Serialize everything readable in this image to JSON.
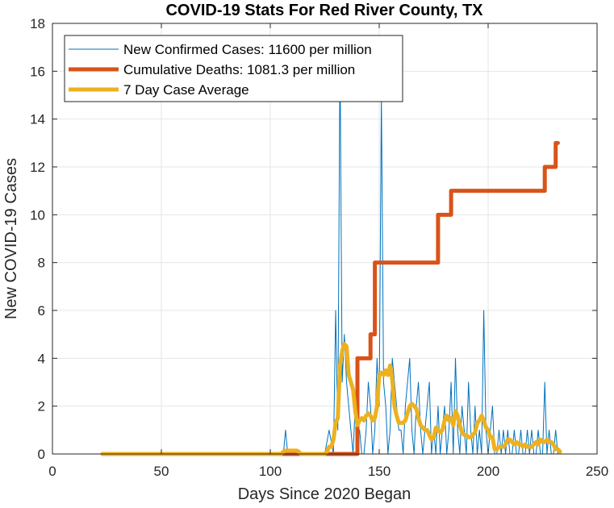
{
  "chart_data": {
    "type": "line",
    "title": "COVID-19 Stats For Red River County, TX",
    "xlabel": "Days Since 2020 Began",
    "ylabel": "New COVID-19 Cases",
    "xlim": [
      0,
      250
    ],
    "ylim": [
      0,
      18
    ],
    "xticks": [
      0,
      50,
      100,
      150,
      200,
      250
    ],
    "yticks": [
      0,
      2,
      4,
      6,
      8,
      10,
      12,
      14,
      16,
      18
    ],
    "grid": true,
    "legend_position": "top-left",
    "colors": {
      "cases": "#0072BD",
      "deaths": "#D95319",
      "avg": "#EDB120",
      "grid": "#e6e6e6",
      "axis": "#262626"
    },
    "series": [
      {
        "name": "New Confirmed Cases: 11600 per million",
        "key": "cases",
        "x": [
          23,
          106,
          107,
          108,
          109,
          110,
          125,
          127,
          129,
          130,
          131,
          132,
          133,
          134,
          135,
          136,
          137,
          138,
          139,
          140,
          141,
          142,
          143,
          144,
          145,
          146,
          147,
          148,
          149,
          150,
          151,
          152,
          153,
          154,
          155,
          156,
          157,
          158,
          159,
          160,
          161,
          162,
          163,
          164,
          165,
          166,
          167,
          168,
          169,
          170,
          171,
          172,
          173,
          174,
          175,
          176,
          177,
          178,
          179,
          180,
          181,
          182,
          183,
          184,
          185,
          186,
          187,
          188,
          189,
          190,
          191,
          192,
          193,
          194,
          195,
          196,
          197,
          198,
          199,
          200,
          201,
          202,
          203,
          204,
          205,
          206,
          207,
          208,
          209,
          210,
          211,
          212,
          213,
          214,
          215,
          216,
          217,
          218,
          219,
          220,
          221,
          222,
          223,
          224,
          225,
          226,
          227,
          228,
          229,
          230,
          231,
          232
        ],
        "y": [
          0,
          0,
          1,
          0,
          0,
          0,
          0,
          1,
          0,
          6,
          1,
          17,
          3,
          5,
          3,
          2,
          1,
          0,
          2,
          1,
          1,
          0,
          0,
          1,
          3,
          2,
          0,
          1,
          4,
          2,
          15,
          3,
          2,
          0,
          1,
          4,
          3,
          2,
          1,
          1,
          0,
          2,
          3,
          4,
          1,
          0,
          2,
          3,
          1,
          0,
          1,
          2,
          3,
          0,
          1,
          0,
          2,
          0,
          1,
          2,
          0,
          1,
          3,
          0,
          4,
          1,
          0,
          2,
          1,
          0,
          3,
          1,
          0,
          2,
          0,
          1,
          0,
          6,
          1,
          0,
          1,
          2,
          0,
          0,
          1,
          0,
          1,
          0,
          1,
          0,
          0,
          1,
          0,
          0,
          1,
          0,
          0,
          1,
          0,
          1,
          0,
          0,
          1,
          0,
          0,
          3,
          0,
          1,
          0,
          0,
          1,
          0
        ]
      },
      {
        "name": "Cumulative Deaths: 1081.3 per million",
        "key": "deaths",
        "x": [
          23,
          140,
          140.01,
          141,
          146,
          146.01,
          147,
          147.01,
          148,
          148.01,
          177,
          177.01,
          180,
          180.01,
          183,
          183.01,
          226,
          226.01,
          229,
          229.01,
          231,
          231.01,
          232
        ],
        "y": [
          0,
          0,
          4,
          4,
          4,
          5,
          5,
          5,
          5,
          8,
          8,
          10,
          10,
          10,
          10,
          11,
          11,
          12,
          12,
          12,
          12,
          13,
          13
        ]
      },
      {
        "name": "7 Day Case Average",
        "key": "avg",
        "x": [
          23,
          105,
          106,
          107,
          108,
          110,
          112,
          113,
          114,
          120,
          125,
          126,
          127,
          128,
          129,
          130,
          131,
          132,
          133,
          134,
          135,
          136,
          137,
          138,
          139,
          140,
          141,
          142,
          143,
          144,
          145,
          146,
          147,
          148,
          149,
          150,
          151,
          152,
          153,
          154,
          155,
          156,
          157,
          158,
          159,
          160,
          161,
          162,
          163,
          164,
          165,
          166,
          167,
          168,
          169,
          170,
          171,
          172,
          173,
          174,
          175,
          176,
          177,
          178,
          179,
          180,
          181,
          182,
          183,
          184,
          185,
          186,
          187,
          188,
          189,
          190,
          191,
          192,
          193,
          194,
          195,
          196,
          197,
          198,
          199,
          200,
          201,
          202,
          203,
          204,
          205,
          206,
          207,
          208,
          209,
          210,
          211,
          212,
          213,
          214,
          215,
          216,
          217,
          218,
          219,
          220,
          221,
          222,
          223,
          224,
          225,
          226,
          227,
          228,
          229,
          230,
          231,
          232,
          233
        ],
        "y": [
          0,
          0,
          0.1,
          0.14,
          0.14,
          0.14,
          0.14,
          0.1,
          0,
          0,
          0,
          0.1,
          0.3,
          0.3,
          0.6,
          1.3,
          1.5,
          3.7,
          4.3,
          4.6,
          4.5,
          3.3,
          3.0,
          2.7,
          1.8,
          1.2,
          1.4,
          1.5,
          1.4,
          1.6,
          1.7,
          1.6,
          1.4,
          1.5,
          2.0,
          3.3,
          3.4,
          3.3,
          3.5,
          3.3,
          3.7,
          3.1,
          2.0,
          1.6,
          1.3,
          1.3,
          1.3,
          1.4,
          1.7,
          2.0,
          2.1,
          2.0,
          1.9,
          1.5,
          1.2,
          1.1,
          1.0,
          1.0,
          0.8,
          0.6,
          0.7,
          1.1,
          1.0,
          0.9,
          1.0,
          1.4,
          1.6,
          1.4,
          1.5,
          1.2,
          1.8,
          1.6,
          1.2,
          0.9,
          0.8,
          0.8,
          0.7,
          0.7,
          0.8,
          0.9,
          1.3,
          1.4,
          1.6,
          1.4,
          1.1,
          1.0,
          0.7,
          0.7,
          0.2,
          0.2,
          0.3,
          0.3,
          0.3,
          0.4,
          0.6,
          0.6,
          0.5,
          0.4,
          0.5,
          0.4,
          0.4,
          0.3,
          0.4,
          0.3,
          0.3,
          0.3,
          0.4,
          0.5,
          0.4,
          0.6,
          0.5,
          0.5,
          0.6,
          0.5,
          0.5,
          0.4,
          0.2,
          0.2,
          0.1
        ]
      }
    ]
  }
}
